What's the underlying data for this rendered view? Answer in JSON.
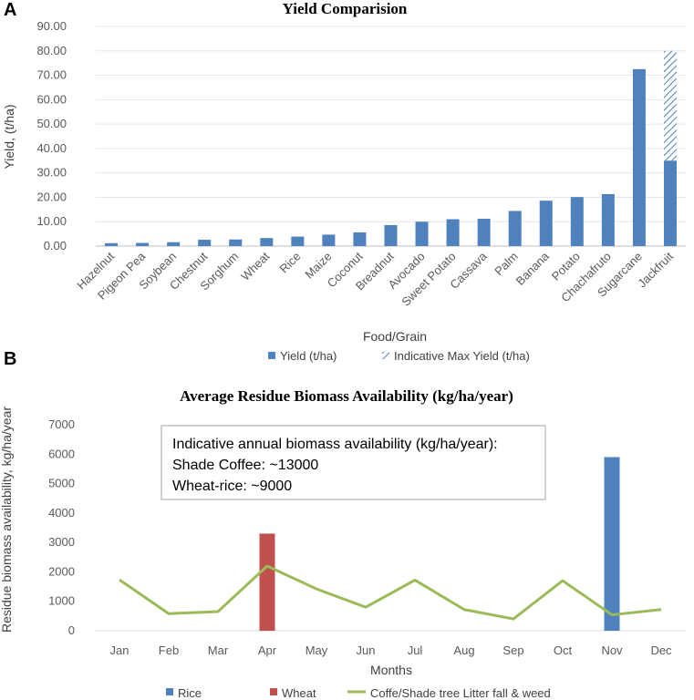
{
  "panel_a_label": "A",
  "panel_b_label": "B",
  "chart_data": [
    {
      "type": "bar",
      "title": "Yield Comparision",
      "xlabel": "Food/Grain",
      "ylabel": "Yield, (t/ha)",
      "ylim": [
        0,
        90
      ],
      "yticks": [
        "0.00",
        "10.00",
        "20.00",
        "30.00",
        "40.00",
        "50.00",
        "60.00",
        "70.00",
        "80.00",
        "90.00"
      ],
      "ytick_values": [
        0,
        10,
        20,
        30,
        40,
        50,
        60,
        70,
        80,
        90
      ],
      "categories": [
        "Hazelnut",
        "Pigeon Pea",
        "Soybean",
        "Chestnut",
        "Sorghum",
        "Wheat",
        "Rice",
        "Maize",
        "Coconut",
        "Breadnut",
        "Avocado",
        "Sweet Potato",
        "Cassava",
        "Palm",
        "Banana",
        "Potato",
        "Chachafruto",
        "Sugarcane",
        "Jackfruit"
      ],
      "series": [
        {
          "name": "Yield (t/ha)",
          "color": "#4f81bd",
          "values": [
            1.2,
            1.3,
            1.6,
            2.6,
            2.7,
            3.3,
            3.9,
            4.7,
            5.6,
            8.6,
            10.0,
            11.0,
            11.2,
            14.4,
            18.6,
            20.1,
            21.3,
            72.5,
            35.0
          ]
        },
        {
          "name": "Indicative Max Yield (t/ha)",
          "color": "#4f81bd",
          "pattern": "hatch",
          "values": [
            null,
            null,
            null,
            null,
            null,
            null,
            null,
            null,
            null,
            null,
            null,
            null,
            null,
            null,
            null,
            null,
            null,
            null,
            80.0
          ]
        }
      ],
      "legend": [
        "Yield (t/ha)",
        "Indicative Max Yield (t/ha)"
      ]
    },
    {
      "type": "bar+line",
      "title": "Average Residue Biomass Availability (kg/ha/year)",
      "xlabel": "Months",
      "ylabel": "Residue biomass availability, kg/ha/year",
      "ylim": [
        0,
        7000
      ],
      "yticks": [
        "0",
        "1000",
        "2000",
        "3000",
        "4000",
        "5000",
        "6000",
        "7000"
      ],
      "ytick_values": [
        0,
        1000,
        2000,
        3000,
        4000,
        5000,
        6000,
        7000
      ],
      "categories": [
        "Jan",
        "Feb",
        "Mar",
        "Apr",
        "May",
        "Jun",
        "Jul",
        "Aug",
        "Sep",
        "Oct",
        "Nov",
        "Dec"
      ],
      "series": [
        {
          "name": "Rice",
          "type": "bar",
          "color": "#4f81bd",
          "values": [
            null,
            null,
            null,
            null,
            null,
            null,
            null,
            null,
            null,
            null,
            5900,
            null
          ]
        },
        {
          "name": "Wheat",
          "type": "bar",
          "color": "#c0504d",
          "values": [
            null,
            null,
            null,
            3300,
            null,
            null,
            null,
            null,
            null,
            null,
            null,
            null
          ]
        },
        {
          "name": "Coffe/Shade tree Litter fall & weed",
          "type": "line",
          "color": "#9bbb59",
          "values": [
            1730,
            580,
            650,
            2200,
            1420,
            800,
            1720,
            720,
            400,
            1700,
            540,
            720
          ]
        }
      ],
      "legend": [
        "Rice",
        "Wheat",
        "Coffe/Shade tree Litter fall & weed"
      ],
      "annotation": {
        "lines": [
          "Indicative annual biomass availability (kg/ha/year):",
          "Shade Coffee: ~13000",
          "Wheat-rice: ~9000"
        ]
      }
    }
  ]
}
